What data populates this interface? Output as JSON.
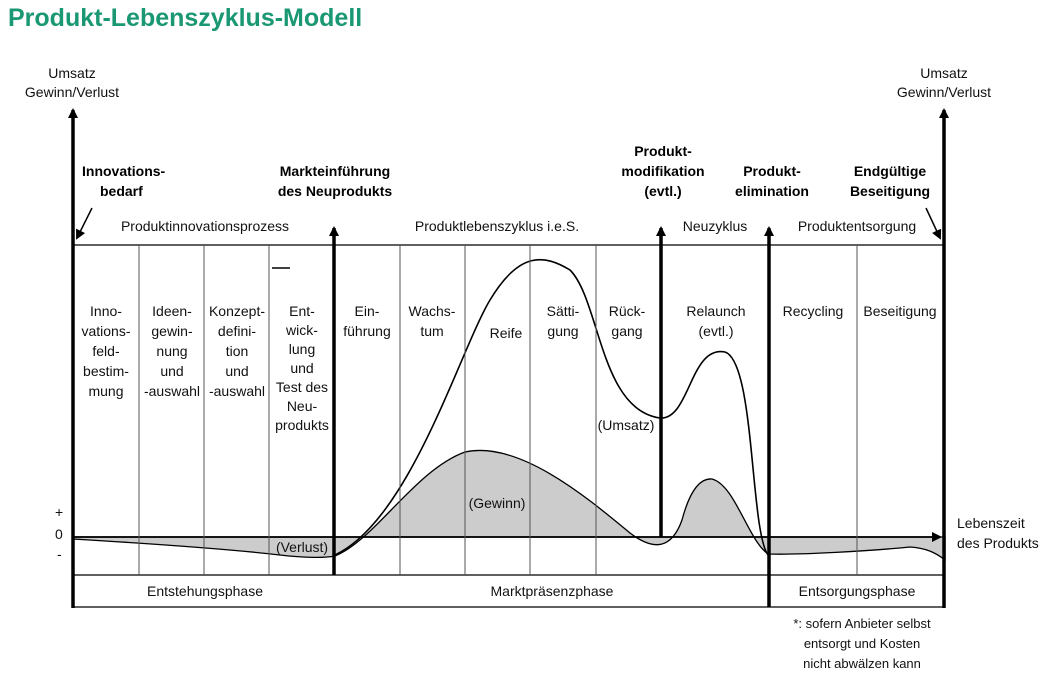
{
  "title": "Produkt-Lebenszyklus-Modell",
  "axis": {
    "left_label": [
      "Umsatz",
      "Gewinn/Verlust"
    ],
    "right_label": [
      "Umsatz",
      "Gewinn/Verlust"
    ],
    "x_label": [
      "Lebenszeit",
      "des Produkts"
    ],
    "plus": "+",
    "zero": "0",
    "minus": "-"
  },
  "events": {
    "innovationsbedarf": [
      "Innovations-",
      "bedarf"
    ],
    "markteinfuehrung": [
      "Markteinführung",
      "des Neuprodukts"
    ],
    "produktmodifikation": [
      "Produkt-",
      "modifikation",
      "(evtl.)"
    ],
    "produktelimination": [
      "Produkt-",
      "elimination"
    ],
    "beseitigung": [
      "Endgültige",
      "Beseitigung"
    ]
  },
  "processes": {
    "innovationsprozess": "Produktinnovationsprozess",
    "lebenszyklus": "Produktlebenszyklus i.e.S.",
    "neuzyklus": "Neuzyklus",
    "entsorgung": "Produktentsorgung"
  },
  "stages": {
    "innovationsfeld": [
      "Inno-",
      "vations-",
      "feld-",
      "bestim-",
      "mung"
    ],
    "ideen": [
      "Ideen-",
      "gewin-",
      "nung",
      "und",
      "-auswahl"
    ],
    "konzept": [
      "Konzept-",
      "defini-",
      "tion",
      "und",
      "-auswahl"
    ],
    "entwicklung": [
      "Ent-",
      "wick-",
      "lung",
      "und",
      "Test des",
      "Neu-",
      "produkts"
    ],
    "einfuehrung": [
      "Ein-",
      "führung"
    ],
    "wachstum": [
      "Wachs-",
      "tum"
    ],
    "reife": "Reife",
    "saettigung": [
      "Sätti-",
      "gung"
    ],
    "rueckgang": [
      "Rück-",
      "gang"
    ],
    "relaunch": [
      "Relaunch",
      "(evtl.)"
    ],
    "recycling": "Recycling",
    "beseitigung_stage": "Beseitigung"
  },
  "curve_labels": {
    "umsatz": "(Umsatz)",
    "gewinn": "(Gewinn)",
    "verlust": "(Verlust)"
  },
  "phases": {
    "entstehung": "Entstehungsphase",
    "marktpraesenz": "Marktpräsenzphase",
    "entsorgung": "Entsorgungsphase"
  },
  "footnote": [
    "*: sofern Anbieter selbst",
    "entsorgt und Kosten",
    "nicht abwälzen kann"
  ],
  "colors": {
    "title": "#1a9873",
    "fill": "#cccccc",
    "line": "#000000"
  }
}
